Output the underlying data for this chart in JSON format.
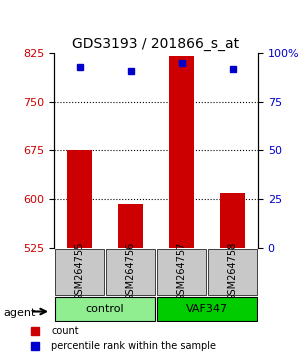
{
  "title": "GDS3193 / 201866_s_at",
  "samples": [
    "GSM264755",
    "GSM264756",
    "GSM264757",
    "GSM264758"
  ],
  "counts": [
    675,
    592,
    820,
    610
  ],
  "percentiles": [
    93,
    91,
    95,
    92
  ],
  "ylim_left": [
    525,
    825
  ],
  "ylim_right": [
    0,
    100
  ],
  "yticks_left": [
    525,
    600,
    675,
    750,
    825
  ],
  "yticks_right": [
    0,
    25,
    50,
    75,
    100
  ],
  "ytick_labels_right": [
    "0",
    "25",
    "50",
    "75",
    "100%"
  ],
  "groups": [
    {
      "label": "control",
      "indices": [
        0,
        1
      ],
      "color": "#90EE90"
    },
    {
      "label": "VAF347",
      "indices": [
        2,
        3
      ],
      "color": "#00CC00"
    }
  ],
  "group_label_prefix": "agent",
  "bar_color": "#CC0000",
  "dot_color": "#0000CC",
  "grid_color": "#000000",
  "bar_width": 0.5,
  "background_plot": "#FFFFFF",
  "background_sample": "#C8C8C8"
}
